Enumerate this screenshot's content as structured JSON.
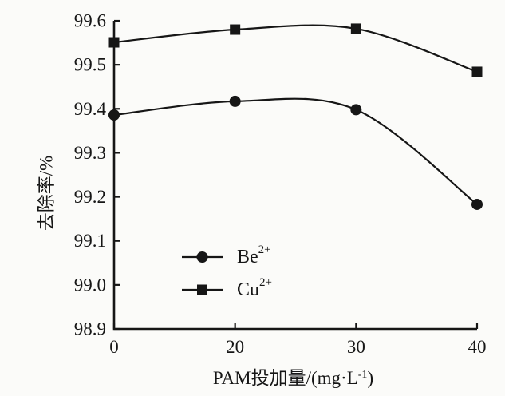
{
  "chart_data": {
    "type": "line",
    "title": "",
    "xlabel": {
      "full": "PAM投加量/(mg·L⁻¹)",
      "base": "PAM投加量/(mg·L",
      "sup": "-1",
      "end": ")"
    },
    "ylabel": "去除率/%",
    "x_categories": [
      "0",
      "20",
      "30",
      "40"
    ],
    "x_values": [
      0,
      20,
      30,
      40
    ],
    "x_spacing": "categorical-even",
    "ylim": [
      98.9,
      99.6
    ],
    "ytick_step": 0.1,
    "yticks": [
      "98.9",
      "99.0",
      "99.1",
      "99.2",
      "99.3",
      "99.4",
      "99.5",
      "99.6"
    ],
    "grid": false,
    "line_style": "smooth",
    "legend_position": "inside-lower-center",
    "ink_color": "#161616",
    "series": [
      {
        "name": "Be2+",
        "label_base": "Be",
        "label_sup": "2+",
        "marker": "circle",
        "color": "#161616",
        "values": [
          99.386,
          99.417,
          99.398,
          99.183
        ]
      },
      {
        "name": "Cu2+",
        "label_base": "Cu",
        "label_sup": "2+",
        "marker": "square",
        "color": "#161616",
        "values": [
          99.551,
          99.58,
          99.582,
          99.484
        ]
      }
    ]
  }
}
